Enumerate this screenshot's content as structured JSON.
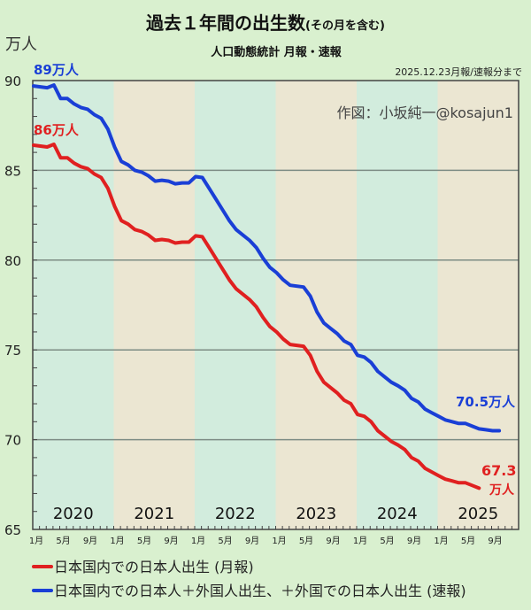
{
  "chart_data": {
    "type": "line",
    "title": "過去１年間の出生数",
    "title_note": "(その月を含む)",
    "subtitle": "人口動態統計 月報・速報",
    "date_note": "2025.12.23月報/速報分まで",
    "credit": "作図：小坂純一@kosajun1",
    "ylabel": "万人",
    "ylim": [
      65,
      90
    ],
    "yticks": [
      "90",
      "85",
      "80",
      "75",
      "70",
      "65"
    ],
    "grid": true,
    "x_start": "2020-01",
    "x_end": "2025-12",
    "years": [
      "2020",
      "2021",
      "2022",
      "2023",
      "2024",
      "2025"
    ],
    "month_ticks": [
      "1月",
      "5月",
      "9月"
    ],
    "band_colors": [
      "#d2ecdd",
      "#ebe6d2"
    ],
    "series": [
      {
        "name": "日本国内での日本人出生 (月報)",
        "color": "#e02020",
        "start_label": "86万人",
        "end_label_value": "67.3",
        "end_label_unit": "万人",
        "values": [
          86.4,
          86.35,
          86.3,
          86.45,
          85.7,
          85.7,
          85.4,
          85.2,
          85.1,
          84.8,
          84.6,
          84.0,
          83.0,
          82.2,
          82.0,
          81.7,
          81.6,
          81.4,
          81.1,
          81.15,
          81.1,
          80.95,
          81.0,
          81.0,
          81.35,
          81.3,
          80.7,
          80.1,
          79.5,
          78.9,
          78.4,
          78.1,
          77.8,
          77.4,
          76.8,
          76.3,
          76.0,
          75.6,
          75.3,
          75.25,
          75.2,
          74.7,
          73.8,
          73.2,
          72.9,
          72.6,
          72.2,
          72.0,
          71.4,
          71.3,
          71.0,
          70.5,
          70.2,
          69.9,
          69.7,
          69.45,
          69.0,
          68.8,
          68.4,
          68.2,
          68.0,
          67.8,
          67.7,
          67.6,
          67.6,
          67.45,
          67.3
        ]
      },
      {
        "name": "日本国内での日本人＋外国人出生、＋外国での日本人出生 (速報)",
        "color": "#1a3fd6",
        "start_label": "89万人",
        "end_label_value": "70.5万人",
        "end_label_unit": "",
        "values": [
          89.7,
          89.65,
          89.6,
          89.75,
          89.0,
          89.0,
          88.7,
          88.5,
          88.4,
          88.1,
          87.9,
          87.3,
          86.3,
          85.5,
          85.3,
          85.0,
          84.9,
          84.7,
          84.4,
          84.45,
          84.4,
          84.25,
          84.3,
          84.3,
          84.65,
          84.6,
          84.0,
          83.4,
          82.8,
          82.2,
          81.7,
          81.4,
          81.1,
          80.7,
          80.1,
          79.6,
          79.3,
          78.9,
          78.6,
          78.55,
          78.5,
          78.0,
          77.1,
          76.5,
          76.2,
          75.9,
          75.5,
          75.3,
          74.7,
          74.6,
          74.3,
          73.8,
          73.5,
          73.2,
          73.0,
          72.75,
          72.3,
          72.1,
          71.7,
          71.5,
          71.3,
          71.1,
          71.0,
          70.9,
          70.9,
          70.75,
          70.6,
          70.55,
          70.5,
          70.5
        ]
      }
    ]
  }
}
